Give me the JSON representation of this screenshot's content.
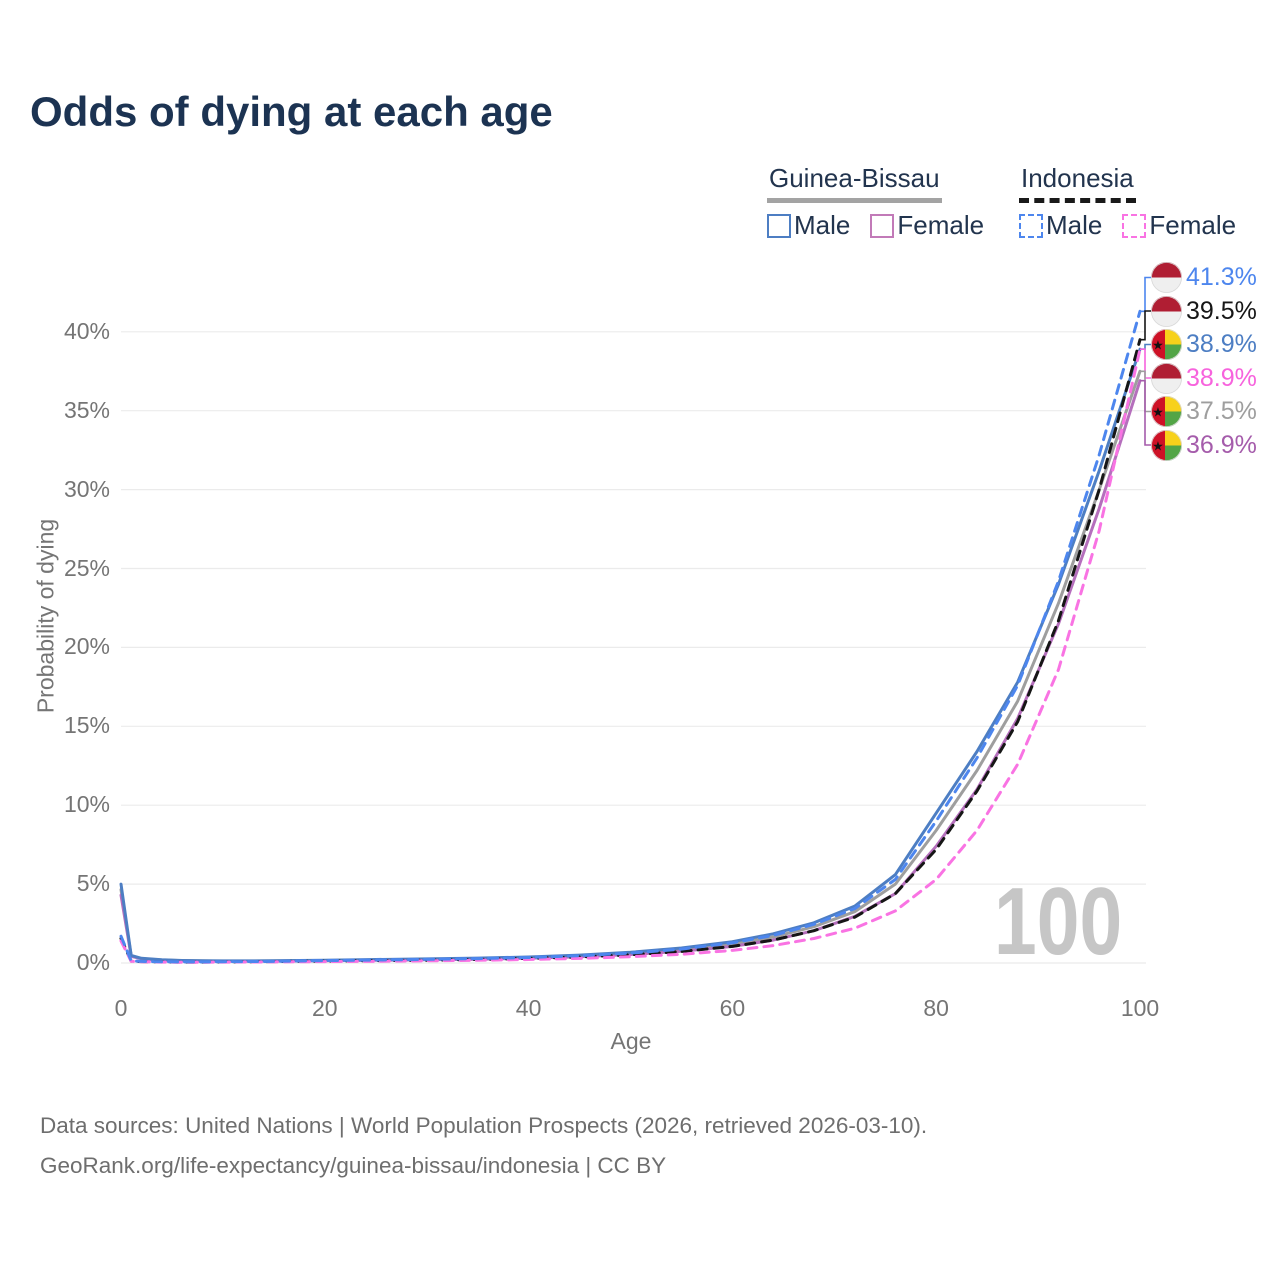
{
  "title": "Odds of dying at each age",
  "legend": {
    "groups": [
      {
        "name": "Guinea-Bissau",
        "line_style": "solid",
        "line_color": "#a3a3a3",
        "items": [
          {
            "label": "Male",
            "color": "#4d7ec3",
            "style": "solid"
          },
          {
            "label": "Female",
            "color": "#c27ab8",
            "style": "solid"
          }
        ]
      },
      {
        "name": "Indonesia",
        "line_style": "dashed",
        "line_color": "#1a1a1a",
        "items": [
          {
            "label": "Male",
            "color": "#4d86ee",
            "style": "dashed"
          },
          {
            "label": "Female",
            "color": "#f973e3",
            "style": "dashed"
          }
        ]
      }
    ]
  },
  "chart_data": {
    "type": "line",
    "title": "Odds of dying at each age",
    "xlabel": "Age",
    "ylabel": "Probability of dying",
    "xlim": [
      0,
      100
    ],
    "ylim": [
      0,
      44
    ],
    "grid": "horizontal-only",
    "legend_position": "top-right",
    "watermark": "100",
    "x_ticks": [
      0,
      20,
      40,
      60,
      80,
      100
    ],
    "y_ticks": [
      {
        "value": 0,
        "label": "0%"
      },
      {
        "value": 5,
        "label": "5%"
      },
      {
        "value": 10,
        "label": "10%"
      },
      {
        "value": 15,
        "label": "15%"
      },
      {
        "value": 20,
        "label": "20%"
      },
      {
        "value": 25,
        "label": "25%"
      },
      {
        "value": 30,
        "label": "30%"
      },
      {
        "value": 35,
        "label": "35%"
      },
      {
        "value": 40,
        "label": "40%"
      }
    ],
    "ages": [
      0,
      1,
      2,
      4,
      6,
      8,
      10,
      15,
      20,
      25,
      30,
      35,
      40,
      45,
      50,
      55,
      60,
      64,
      68,
      72,
      76,
      80,
      84,
      88,
      92,
      96,
      100
    ],
    "series": [
      {
        "id": "guinea-bissau-all",
        "name": "Guinea-Bissau",
        "sex": "All",
        "color": "#9e9e9e",
        "dash": "solid",
        "values": [
          4.65,
          0.45,
          0.28,
          0.19,
          0.15,
          0.13,
          0.12,
          0.13,
          0.16,
          0.19,
          0.23,
          0.28,
          0.34,
          0.45,
          0.6,
          0.85,
          1.2,
          1.65,
          2.3,
          3.25,
          5.0,
          8.4,
          12.2,
          16.6,
          22.8,
          30.0,
          37.5
        ]
      },
      {
        "id": "guinea-bissau-female",
        "name": "Guinea-Bissau Female",
        "sex": "Female",
        "color": "#b56fbc",
        "dash": "solid",
        "values": [
          4.3,
          0.42,
          0.27,
          0.18,
          0.14,
          0.12,
          0.11,
          0.12,
          0.14,
          0.17,
          0.2,
          0.24,
          0.3,
          0.4,
          0.54,
          0.75,
          1.05,
          1.45,
          2.05,
          2.95,
          4.4,
          7.4,
          11.0,
          15.5,
          21.5,
          28.8,
          36.9
        ]
      },
      {
        "id": "guinea-bissau-male",
        "name": "Guinea-Bissau Male",
        "sex": "Male",
        "color": "#4d7ec3",
        "dash": "solid",
        "values": [
          5.0,
          0.48,
          0.3,
          0.2,
          0.16,
          0.14,
          0.13,
          0.14,
          0.18,
          0.22,
          0.26,
          0.31,
          0.38,
          0.5,
          0.68,
          0.95,
          1.35,
          1.85,
          2.55,
          3.6,
          5.6,
          9.5,
          13.4,
          17.8,
          24.0,
          31.2,
          38.9
        ]
      },
      {
        "id": "indonesia-all",
        "name": "Indonesia",
        "sex": "All",
        "color": "#161616",
        "dash": "dashed",
        "values": [
          1.55,
          0.12,
          0.09,
          0.07,
          0.06,
          0.06,
          0.07,
          0.09,
          0.12,
          0.15,
          0.18,
          0.22,
          0.29,
          0.38,
          0.52,
          0.73,
          1.05,
          1.45,
          2.05,
          2.9,
          4.4,
          7.2,
          10.9,
          15.3,
          21.7,
          30.0,
          39.5
        ]
      },
      {
        "id": "indonesia-female",
        "name": "Indonesia Female",
        "sex": "Female",
        "color": "#f973e3",
        "dash": "dashed",
        "values": [
          1.4,
          0.11,
          0.08,
          0.06,
          0.05,
          0.05,
          0.06,
          0.07,
          0.09,
          0.11,
          0.14,
          0.17,
          0.22,
          0.29,
          0.4,
          0.55,
          0.8,
          1.1,
          1.55,
          2.2,
          3.3,
          5.3,
          8.4,
          12.6,
          18.6,
          27.4,
          38.9
        ]
      },
      {
        "id": "indonesia-male",
        "name": "Indonesia Male",
        "sex": "Male",
        "color": "#4d86ee",
        "dash": "dashed",
        "values": [
          1.7,
          0.14,
          0.1,
          0.08,
          0.07,
          0.07,
          0.08,
          0.1,
          0.15,
          0.19,
          0.23,
          0.28,
          0.35,
          0.46,
          0.63,
          0.88,
          1.28,
          1.75,
          2.45,
          3.45,
          5.3,
          9.0,
          13.0,
          17.6,
          24.2,
          32.2,
          41.3
        ]
      }
    ],
    "end_labels": [
      {
        "text": "41.3%",
        "series": "indonesia-male",
        "flag": "indonesia",
        "color": "#4d86ee",
        "end_value": 41.3
      },
      {
        "text": "39.5%",
        "series": "indonesia-all",
        "flag": "indonesia",
        "color": "#161616",
        "end_value": 39.5
      },
      {
        "text": "38.9%",
        "series": "guinea-bissau-male",
        "flag": "guinea-bissau",
        "color": "#4d7ec3",
        "end_value": 38.9
      },
      {
        "text": "38.9%",
        "series": "indonesia-female",
        "flag": "indonesia",
        "color": "#f763dd",
        "end_value": 38.9
      },
      {
        "text": "37.5%",
        "series": "guinea-bissau-all",
        "flag": "guinea-bissau",
        "color": "#9e9e9e",
        "end_value": 37.5
      },
      {
        "text": "36.9%",
        "series": "guinea-bissau-female",
        "flag": "guinea-bissau",
        "color": "#a55cab",
        "end_value": 36.9
      }
    ],
    "flag_colors": {
      "indonesia": {
        "top": "#b01e33",
        "bottom": "#efefef"
      },
      "guinea_bissau": {
        "red": "#ce1126",
        "yellow": "#f7d11b",
        "green": "#52a546",
        "star": "#111111"
      }
    }
  },
  "footer": {
    "line1": "Data sources: United Nations | World Population Prospects (2026, retrieved 2026-03-10).",
    "line2": "GeoRank.org/life-expectancy/guinea-bissau/indonesia | CC BY"
  }
}
